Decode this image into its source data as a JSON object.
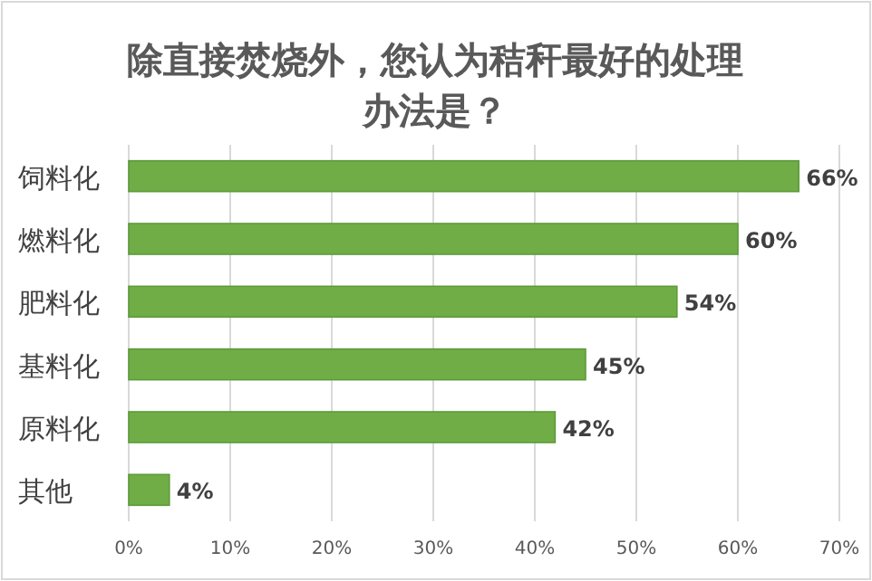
{
  "chart_data": {
    "type": "bar",
    "orientation": "horizontal",
    "title": "除直接焚烧外，您认为秸秆最好的处理办法是？",
    "categories": [
      "饲料化",
      "燃料化",
      "肥料化",
      "基料化",
      "原料化",
      "其他"
    ],
    "values": [
      66,
      60,
      54,
      45,
      42,
      4
    ],
    "value_labels": [
      "66%",
      "60%",
      "54%",
      "45%",
      "42%",
      "4%"
    ],
    "color": "#70ad47",
    "xlim": [
      0,
      70
    ],
    "xticks": [
      {
        "value": 0,
        "label": "0%"
      },
      {
        "value": 10,
        "label": "10%"
      },
      {
        "value": 20,
        "label": "20%"
      },
      {
        "value": 30,
        "label": "30%"
      },
      {
        "value": 40,
        "label": "40%"
      },
      {
        "value": 50,
        "label": "50%"
      },
      {
        "value": 60,
        "label": "60%"
      },
      {
        "value": 70,
        "label": "70%"
      }
    ],
    "grid": "x"
  }
}
